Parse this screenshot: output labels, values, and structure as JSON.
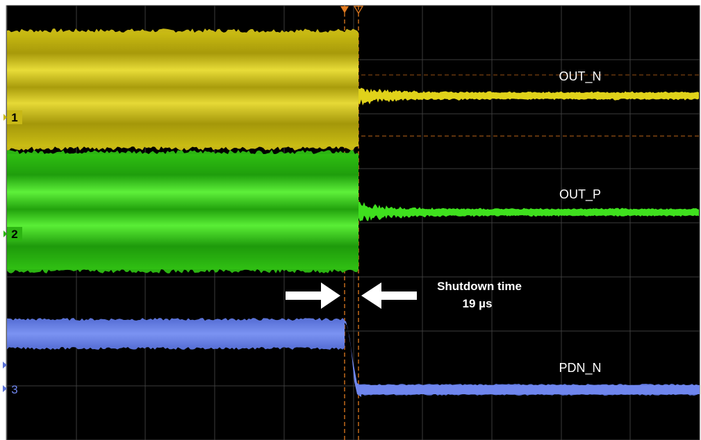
{
  "chart_data": {
    "type": "line",
    "title": "",
    "xlabel": "",
    "ylabel": "",
    "grid": true,
    "background": "#000000",
    "trace_labels": [
      "OUT_N",
      "OUT_P",
      "PDN_N"
    ],
    "channel_markers": [
      "1",
      "2",
      "3"
    ],
    "annotation": {
      "line1": "Shutdown time",
      "line2": "19 µs"
    },
    "colors": {
      "ch1": "#e0d21a",
      "ch2": "#3fe01e",
      "ch3": "#6f86ee",
      "cursor": "#e07a20",
      "arrow": "#ffffff"
    }
  }
}
